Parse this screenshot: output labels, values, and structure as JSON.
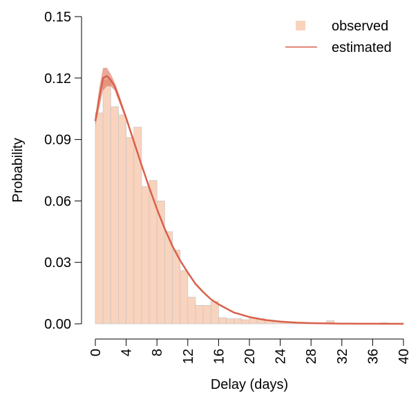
{
  "chart_data": {
    "type": "bar",
    "title": "",
    "xlabel": "Delay (days)",
    "ylabel": "Probability",
    "xlim": [
      0,
      40
    ],
    "ylim": [
      0,
      0.15
    ],
    "x_ticks": [
      0,
      4,
      8,
      12,
      16,
      20,
      24,
      28,
      32,
      36,
      40
    ],
    "y_ticks": [
      "0.00",
      "0.03",
      "0.06",
      "0.09",
      "0.12",
      "0.15"
    ],
    "grid": false,
    "legend_position": "top-right",
    "series": [
      {
        "name": "observed",
        "type": "bar",
        "color": "#f9d3bd",
        "edge_color": "#c8c8c8",
        "x": [
          0,
          1,
          2,
          3,
          4,
          5,
          6,
          7,
          8,
          9,
          10,
          11,
          12,
          13,
          14,
          15,
          16,
          17,
          18,
          19,
          20,
          21,
          22,
          23,
          24,
          25,
          26,
          27,
          28,
          29,
          30,
          31,
          32,
          33,
          34,
          35,
          36,
          37,
          38,
          39
        ],
        "values": [
          0.103,
          0.119,
          0.106,
          0.102,
          0.091,
          0.096,
          0.067,
          0.07,
          0.06,
          0.045,
          0.036,
          0.026,
          0.013,
          0.009,
          0.009,
          0.011,
          0.003,
          0.0025,
          0.0025,
          0.002,
          0.003,
          0.0025,
          0.0015,
          0.001,
          0.001,
          0.001,
          0.0005,
          0.0005,
          0.0005,
          0.0005,
          0.0015,
          0.0003,
          0.0003,
          0.0003,
          0.0003,
          0.0003,
          0.0003,
          0.0005,
          0.0003,
          0.0003
        ]
      },
      {
        "name": "estimated",
        "type": "line",
        "color": "#d9604a",
        "band_color": "#d9604a",
        "x": [
          0,
          0.5,
          1,
          1.5,
          2,
          2.5,
          3,
          4,
          5,
          6,
          7,
          8,
          9,
          10,
          11,
          12,
          13,
          14,
          15,
          16,
          18,
          20,
          22,
          24,
          26,
          28,
          30,
          32,
          34,
          36,
          38,
          40
        ],
        "values": [
          0.099,
          0.11,
          0.12,
          0.121,
          0.119,
          0.116,
          0.111,
          0.1005,
          0.089,
          0.0775,
          0.0665,
          0.056,
          0.0465,
          0.038,
          0.031,
          0.025,
          0.0195,
          0.0155,
          0.012,
          0.0095,
          0.0055,
          0.0033,
          0.0019,
          0.0011,
          0.0006,
          0.00035,
          0.0002,
          0.0001,
          6e-05,
          4e-05,
          2e-05,
          1e-05
        ],
        "lower": [
          0.097,
          0.105,
          0.114,
          0.116,
          0.116,
          0.114,
          0.109,
          0.0995,
          0.088,
          0.077,
          0.066,
          0.0555,
          0.046,
          0.0376,
          0.0306,
          0.0247,
          0.0192,
          0.0152,
          0.0118,
          0.0093,
          0.0054,
          0.0032,
          0.0018,
          0.001,
          0.0005,
          0.0003,
          0.00015,
          8e-05,
          5e-05,
          3e-05,
          1e-05,
          1e-05
        ],
        "upper": [
          0.101,
          0.115,
          0.125,
          0.125,
          0.122,
          0.118,
          0.113,
          0.1015,
          0.09,
          0.078,
          0.067,
          0.0565,
          0.047,
          0.0384,
          0.0314,
          0.0253,
          0.0198,
          0.0158,
          0.0122,
          0.0097,
          0.0056,
          0.0034,
          0.002,
          0.0012,
          0.0007,
          0.0004,
          0.00025,
          0.00012,
          7e-05,
          5e-05,
          3e-05,
          2e-05
        ]
      }
    ]
  }
}
